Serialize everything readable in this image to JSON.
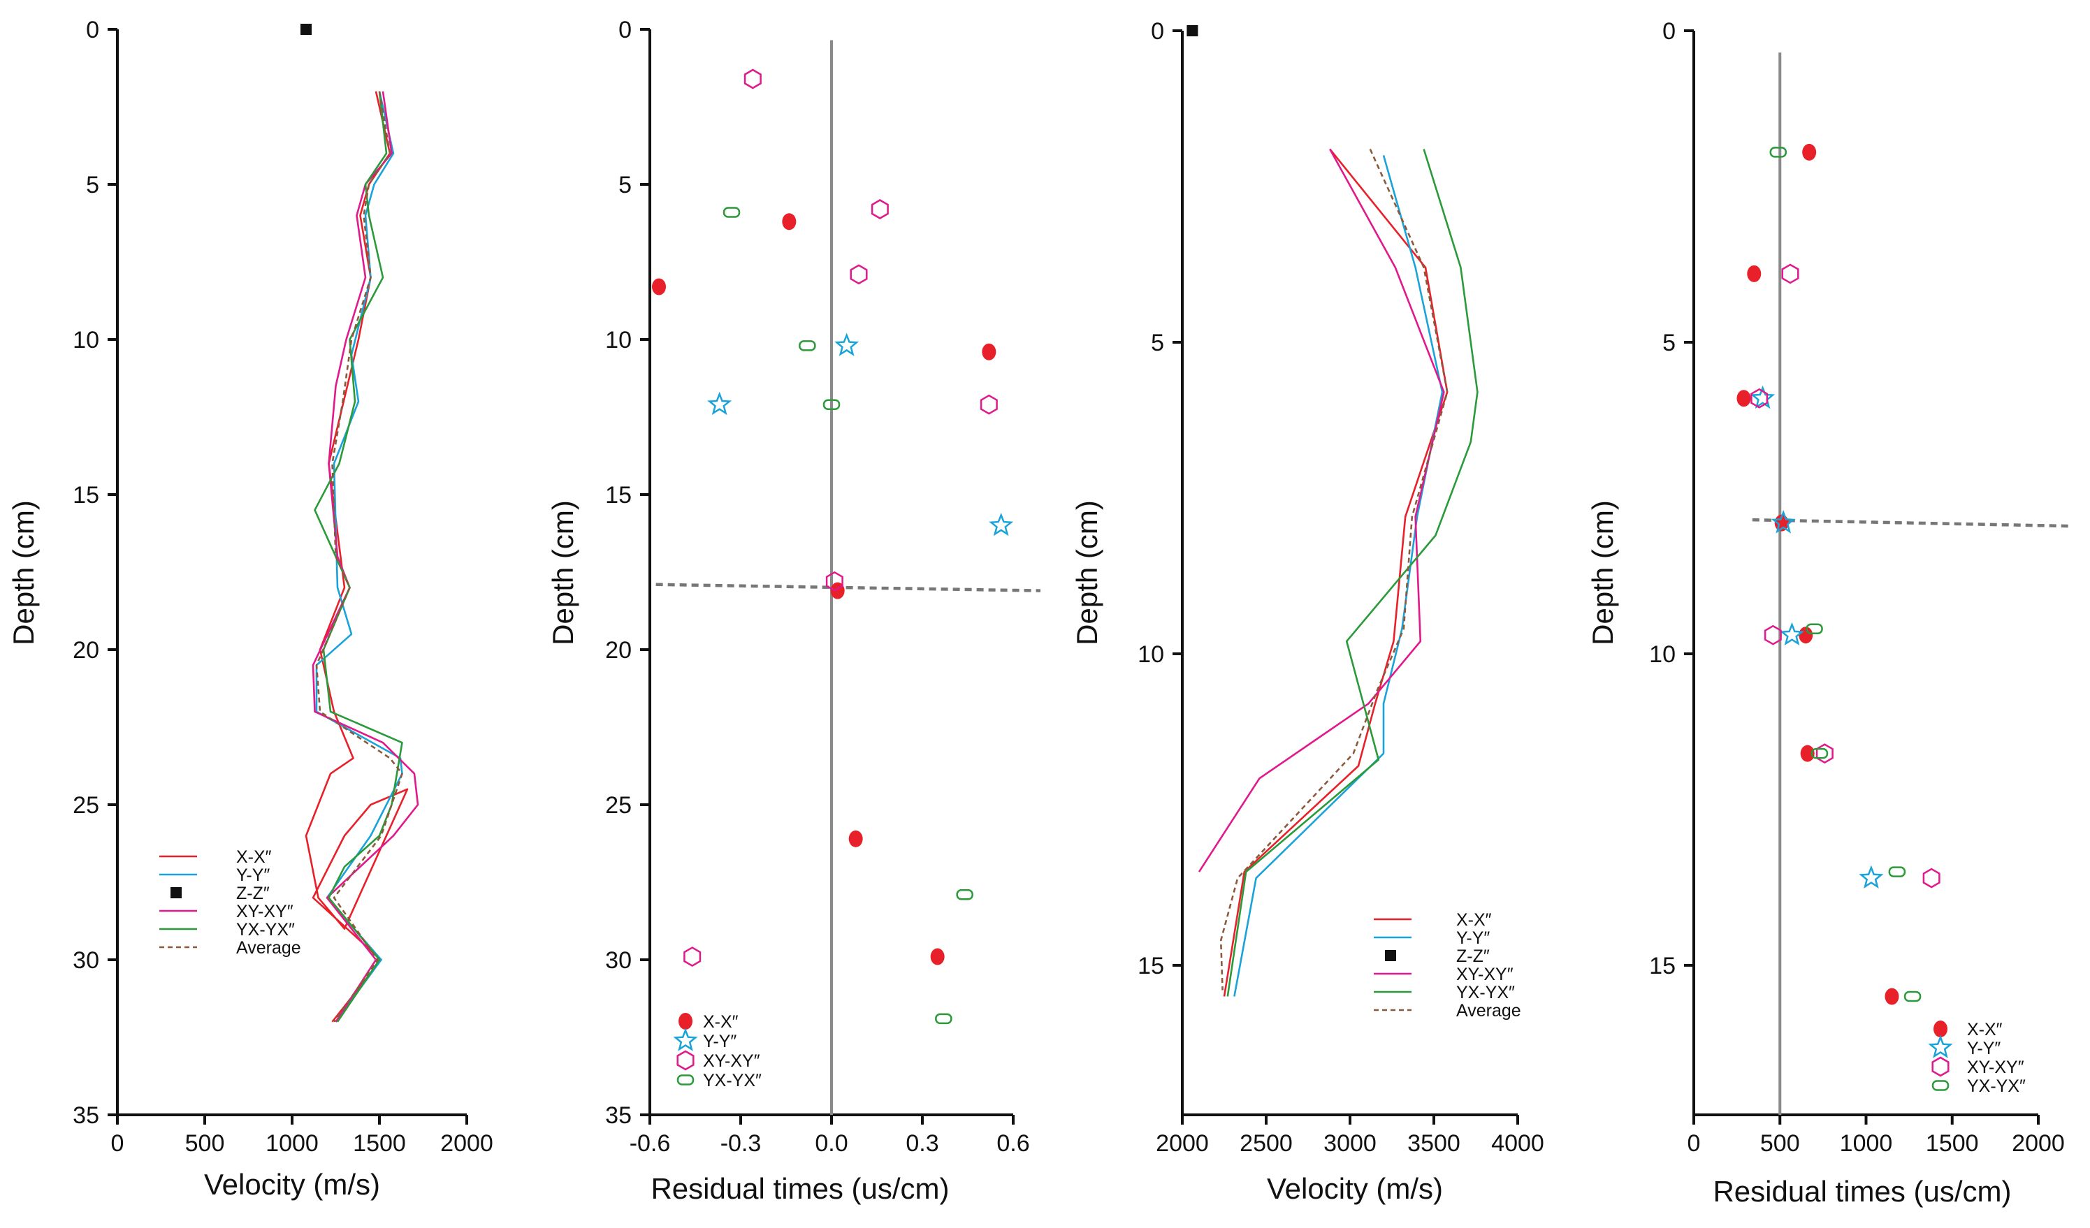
{
  "chart_data": [
    {
      "id": "p1",
      "type": "line",
      "xlabel": "Velocity (m/s)",
      "ylabel": "Depth (cm)",
      "xlim": [
        0,
        2000
      ],
      "ylim": [
        35,
        0
      ],
      "xticks": [
        0,
        500,
        1000,
        1500,
        2000
      ],
      "xtick_labels": [
        "0",
        "500",
        "1000",
        "1500",
        "2000"
      ],
      "yticks": [
        0,
        5,
        10,
        15,
        20,
        25,
        30,
        35
      ],
      "ytick_labels": [
        "0",
        "5",
        "10",
        "15",
        "20",
        "25",
        "30",
        "35"
      ],
      "series": [
        {
          "name": "X-X″",
          "kind": "line",
          "color": "#e8202a",
          "x": [
            1480,
            1560,
            1440,
            1390,
            1450,
            1380,
            1210,
            1300,
            1160,
            1240,
            1350,
            1220,
            1080,
            1150,
            1300,
            1660,
            1450,
            1300,
            1120,
            1510,
            1230
          ],
          "y": [
            2,
            4,
            5,
            6,
            8,
            10,
            14,
            18,
            20,
            22,
            23.5,
            24,
            26,
            28,
            29,
            24.5,
            25,
            26,
            28,
            30,
            32
          ]
        },
        {
          "name": "Y-Y″",
          "kind": "line",
          "color": "#1aa3d9",
          "x": [
            1500,
            1580,
            1470,
            1420,
            1450,
            1340,
            1380,
            1240,
            1260,
            1340,
            1140,
            1140,
            1620,
            1630,
            1450,
            1200,
            1510,
            1250
          ],
          "y": [
            2,
            4,
            5,
            6,
            8,
            10.5,
            12,
            14,
            18,
            19.5,
            20.5,
            22,
            23.5,
            24,
            26,
            28,
            30,
            32
          ]
        },
        {
          "name": "Z-Z″",
          "kind": "marker",
          "color": "#111111",
          "x": [
            1080
          ],
          "y": [
            0
          ]
        },
        {
          "name": "XY-XY″",
          "kind": "line",
          "color": "#e0198c",
          "x": [
            1520,
            1570,
            1420,
            1370,
            1420,
            1310,
            1250,
            1210,
            1260,
            1330,
            1120,
            1130,
            1520,
            1700,
            1720,
            1580,
            1200,
            1480,
            1250
          ],
          "y": [
            2,
            4,
            5,
            6,
            8,
            10,
            11.5,
            14,
            17,
            18,
            20.5,
            22,
            23,
            24,
            25,
            26,
            28,
            30,
            32
          ]
        },
        {
          "name": "YX-YX″",
          "kind": "line",
          "color": "#2a9a3a",
          "x": [
            1500,
            1540,
            1420,
            1440,
            1520,
            1330,
            1360,
            1270,
            1130,
            1250,
            1330,
            1180,
            1220,
            1630,
            1600,
            1570,
            1500,
            1300,
            1210,
            1500,
            1260
          ],
          "y": [
            2,
            4,
            5,
            6,
            8,
            10,
            12,
            14,
            15.5,
            17,
            18,
            20,
            22,
            23,
            24,
            25,
            26,
            27,
            28,
            30,
            32
          ]
        },
        {
          "name": "Average",
          "kind": "dashed",
          "color": "#8a5a3c",
          "x": [
            1500,
            1560,
            1440,
            1410,
            1450,
            1340,
            1290,
            1230,
            1250,
            1330,
            1140,
            1160,
            1560,
            1630,
            1510,
            1240,
            1490,
            1240
          ],
          "y": [
            2,
            4,
            5,
            6,
            8,
            10,
            12,
            14,
            17,
            18,
            20.5,
            22,
            23.5,
            24,
            26,
            28,
            30,
            32
          ]
        }
      ]
    },
    {
      "id": "p2",
      "type": "scatter",
      "xlabel": "Residual times (us/cm)",
      "ylabel": "Depth (cm)",
      "xlim": [
        -0.6,
        0.6
      ],
      "ylim": [
        35,
        0
      ],
      "xticks": [
        -0.6,
        -0.3,
        0,
        0.3,
        0.6
      ],
      "xtick_labels": [
        "-0.6",
        "-0.3",
        "0.0",
        "0.3",
        "0.6"
      ],
      "yticks": [
        0,
        5,
        10,
        15,
        20,
        25,
        30,
        35
      ],
      "ytick_labels": [
        "0",
        "5",
        "10",
        "15",
        "20",
        "25",
        "30",
        "35"
      ],
      "zero_line_x": 0,
      "dashed_depth": [
        [
          -0.58,
          17.9
        ],
        [
          0.69,
          18.1
        ]
      ],
      "series": [
        {
          "name": "X-X″",
          "marker": "dot",
          "color": "#e8202a",
          "x": [
            -0.57,
            -0.14,
            0.52,
            0.02,
            0.08,
            0.35
          ],
          "y": [
            8.3,
            6.2,
            10.4,
            18.1,
            26.1,
            29.9
          ]
        },
        {
          "name": "Y-Y″",
          "marker": "star",
          "color": "#1aa3d9",
          "x": [
            0.05,
            -0.37,
            0.56
          ],
          "y": [
            10.2,
            12.1,
            16.0
          ]
        },
        {
          "name": "XY-XY″",
          "marker": "hex",
          "color": "#e0198c",
          "x": [
            -0.26,
            0.16,
            0.09,
            0.52,
            0.01,
            -0.46
          ],
          "y": [
            1.6,
            5.8,
            7.9,
            12.1,
            17.8,
            29.9
          ]
        },
        {
          "name": "YX-YX″",
          "marker": "pill",
          "color": "#2a9a3a",
          "x": [
            -0.33,
            -0.08,
            0.0,
            0.44,
            0.37
          ],
          "y": [
            5.9,
            10.2,
            12.1,
            27.9,
            31.9
          ]
        }
      ]
    },
    {
      "id": "p3",
      "type": "line",
      "xlabel": "Velocity (m/s)",
      "ylabel": "Depth (cm)",
      "xlim": [
        2000,
        4000
      ],
      "ylim": [
        17.4,
        0
      ],
      "xticks": [
        2000,
        2500,
        3000,
        3500,
        4000
      ],
      "xtick_labels": [
        "2000",
        "2500",
        "3000",
        "3500",
        "4000"
      ],
      "yticks": [
        0,
        5,
        10,
        15
      ],
      "ytick_labels": [
        "0",
        "5",
        "10",
        "15"
      ],
      "series": [
        {
          "name": "X-X″",
          "kind": "line",
          "color": "#e8202a",
          "x": [
            2880,
            3450,
            3580,
            3330,
            3260,
            3150,
            3050,
            2370,
            2250
          ],
          "y": [
            1.9,
            3.8,
            5.8,
            7.8,
            9.8,
            10.8,
            11.8,
            13.5,
            15.5
          ]
        },
        {
          "name": "Y-Y″",
          "kind": "line",
          "color": "#1aa3d9",
          "x": [
            3200,
            3390,
            3550,
            3400,
            3310,
            3200,
            3200,
            2440,
            2310
          ],
          "y": [
            2,
            3.8,
            5.8,
            7.8,
            9.6,
            10.8,
            11.6,
            13.6,
            15.5
          ]
        },
        {
          "name": "Z-Z″",
          "kind": "marker",
          "color": "#111111",
          "x": [
            2060
          ],
          "y": [
            0
          ]
        },
        {
          "name": "XY-XY″",
          "kind": "line",
          "color": "#e0198c",
          "x": [
            2880,
            3270,
            3560,
            3390,
            3420,
            3110,
            2460,
            2100
          ],
          "y": [
            1.9,
            3.8,
            5.8,
            7.8,
            9.8,
            10.8,
            12.0,
            13.5
          ]
        },
        {
          "name": "YX-YX″",
          "kind": "line",
          "color": "#2a9a3a",
          "x": [
            3440,
            3660,
            3760,
            3720,
            3510,
            2980,
            3170,
            2380,
            2270
          ],
          "y": [
            1.9,
            3.8,
            5.8,
            6.6,
            8.1,
            9.8,
            11.7,
            13.5,
            15.5
          ]
        },
        {
          "name": "Average",
          "kind": "dashed",
          "color": "#8a5a3c",
          "x": [
            3120,
            3440,
            3580,
            3370,
            3320,
            3160,
            3020,
            2330,
            2230,
            2240
          ],
          "y": [
            1.9,
            3.8,
            5.8,
            7.8,
            9.6,
            10.6,
            11.6,
            13.6,
            14.6,
            15.4
          ]
        }
      ]
    },
    {
      "id": "p4",
      "type": "scatter",
      "xlabel": "Residual times (us/cm)",
      "ylabel": "Depth (cm)",
      "xlim": [
        0,
        2000
      ],
      "ylim": [
        17.4,
        0
      ],
      "xticks": [
        0,
        500,
        1000,
        1500,
        2000
      ],
      "xtick_labels": [
        "0",
        "500",
        "1000",
        "1500",
        "2000"
      ],
      "yticks": [
        0,
        5,
        10,
        15
      ],
      "ytick_labels": [
        "0",
        "5",
        "10",
        "15"
      ],
      "zero_line_x": 500,
      "dashed_depth": [
        [
          340,
          7.85
        ],
        [
          2180,
          7.95
        ]
      ],
      "series": [
        {
          "name": "X-X″",
          "marker": "dot",
          "color": "#e8202a",
          "x": [
            670,
            350,
            290,
            510,
            650,
            660,
            1150
          ],
          "y": [
            1.95,
            3.9,
            5.9,
            7.9,
            9.7,
            11.6,
            15.5
          ]
        },
        {
          "name": "Y-Y″",
          "marker": "star",
          "color": "#1aa3d9",
          "x": [
            400,
            520,
            570,
            1030
          ],
          "y": [
            5.9,
            7.9,
            9.7,
            13.6
          ]
        },
        {
          "name": "XY-XY″",
          "marker": "hex",
          "color": "#e0198c",
          "x": [
            560,
            380,
            460,
            760,
            1380
          ],
          "y": [
            3.9,
            5.9,
            9.7,
            11.6,
            13.6
          ]
        },
        {
          "name": "YX-YX″",
          "marker": "pill",
          "color": "#2a9a3a",
          "x": [
            490,
            700,
            730,
            1180,
            1270
          ],
          "y": [
            1.95,
            9.6,
            11.6,
            13.5,
            15.5
          ]
        }
      ]
    }
  ]
}
